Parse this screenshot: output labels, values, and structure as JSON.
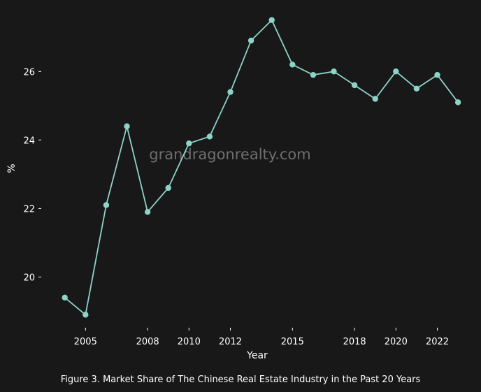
{
  "caption": "Figure 3. Market Share of The Chinese Real Estate Industry in the Past 20 Years",
  "watermark": "grandragonrealty.com",
  "chart_data": {
    "type": "line",
    "xlabel": "Year",
    "ylabel": "%",
    "line_color": "#8dd3c7",
    "background": "#181818",
    "xlim": [
      2003.3,
      2023.3
    ],
    "ylim": [
      18.5,
      27.8
    ],
    "x_ticks": [
      2005,
      2008,
      2010,
      2012,
      2015,
      2018,
      2020,
      2022
    ],
    "x_tick_labels": [
      "2005",
      "2008",
      "2010",
      "2012",
      "2015",
      "2018",
      "2020",
      "2022"
    ],
    "y_ticks": [
      20,
      22,
      24,
      26
    ],
    "y_tick_labels": [
      "20",
      "22",
      "24",
      "26"
    ],
    "grid": false,
    "series": [
      {
        "x": [
          2004,
          2005,
          2006,
          2007,
          2008,
          2009,
          2010,
          2011,
          2012,
          2013,
          2014,
          2015,
          2016,
          2017,
          2018,
          2019,
          2020,
          2021,
          2022,
          2023
        ],
        "values": [
          19.4,
          18.9,
          22.1,
          24.4,
          21.9,
          22.6,
          23.9,
          24.1,
          25.4,
          26.9,
          27.5,
          26.2,
          25.9,
          26.0,
          25.6,
          25.2,
          26.0,
          25.5,
          25.9,
          25.1
        ]
      }
    ]
  }
}
